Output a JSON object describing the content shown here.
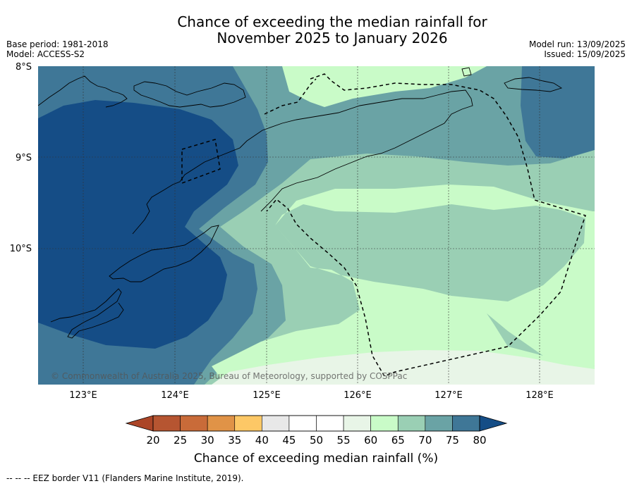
{
  "header": {
    "title_line1": "Chance of exceeding the median rainfall for",
    "title_line2": "November 2025 to January 2026",
    "base_period": "Base period: 1981-2018",
    "model": "Model: ACCESS-S2",
    "model_run": "Model run: 13/09/2025",
    "issued": "Issued: 15/09/2025"
  },
  "map": {
    "lat_labels": [
      "8°S",
      "9°S",
      "10°S"
    ],
    "lon_labels": [
      "123°E",
      "124°E",
      "125°E",
      "126°E",
      "127°E",
      "128°E"
    ],
    "copyright": "© Commonwealth of Australia 2025, Bureau of Meteorology, supported by COSPPac",
    "colors": {
      "c60_65": "#c9fbc8",
      "c55_60": "#e8f5e7",
      "c65_70": "#9acfb4",
      "c70_75": "#6aa3a5",
      "c75_80": "#3f7797",
      "c80plus": "#154d86"
    }
  },
  "colorbar": {
    "ticks": [
      "20",
      "25",
      "30",
      "35",
      "40",
      "45",
      "50",
      "55",
      "60",
      "65",
      "70",
      "75",
      "80"
    ],
    "colors": [
      "#ab4527",
      "#b65531",
      "#c96b39",
      "#e09347",
      "#fdc866",
      "#e8e8e8",
      "#ffffff",
      "#ffffff",
      "#e8f5e7",
      "#c9fbc8",
      "#9acfb4",
      "#6aa3a5",
      "#3f7797",
      "#154d86"
    ],
    "label": "Chance of exceeding median rainfall (%)"
  },
  "footnote": "--  --  -- EEZ border V11 (Flanders Marine Institute, 2019)."
}
